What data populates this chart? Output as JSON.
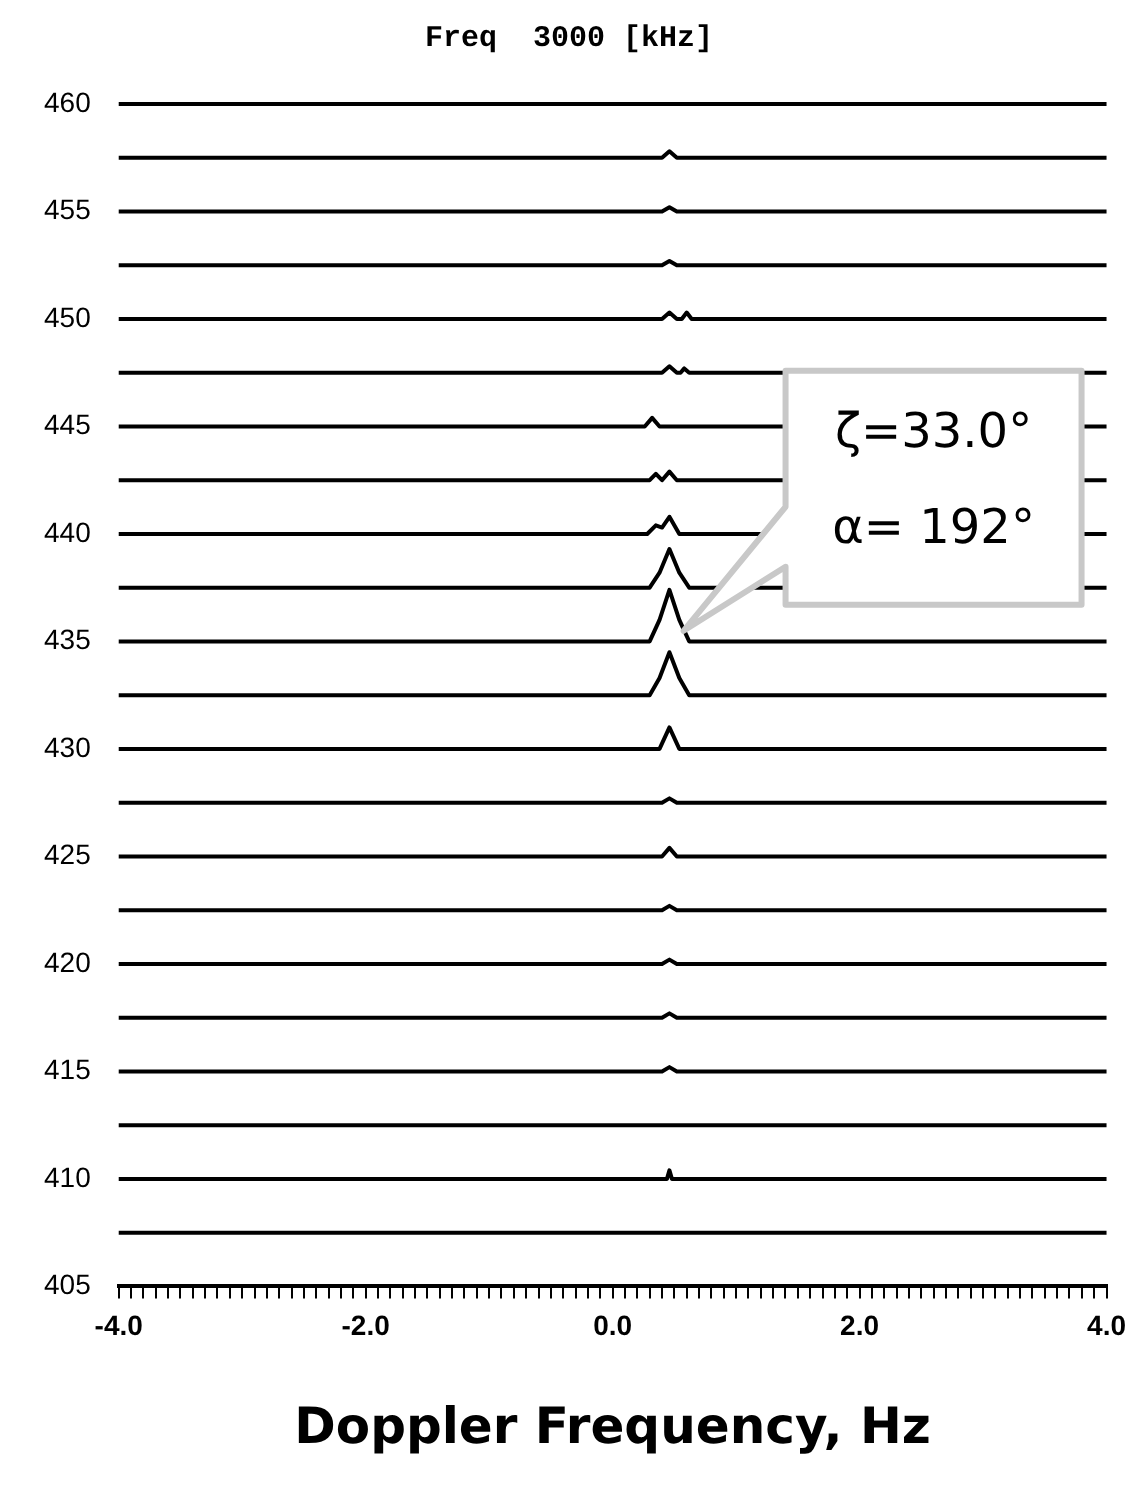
{
  "chart_data": {
    "type": "line",
    "title": "Freq  3000 [kHz]",
    "xlabel": "Doppler Frequency, Hz",
    "marker": "none",
    "legend": false,
    "grid": false,
    "xlim": [
      -4,
      4
    ],
    "ylim": [
      405,
      460
    ],
    "yticks": [
      405,
      410,
      415,
      420,
      425,
      430,
      435,
      440,
      445,
      450,
      455,
      460
    ],
    "xticks": [
      {
        "value": -4,
        "label": "-4.0"
      },
      {
        "value": -3.9,
        "label": null
      },
      {
        "value": -3.8,
        "label": null
      },
      {
        "value": -3.7,
        "label": null
      },
      {
        "value": -3.6,
        "label": null
      },
      {
        "value": -3.5,
        "label": null
      },
      {
        "value": -3.4,
        "label": null
      },
      {
        "value": -3.3,
        "label": null
      },
      {
        "value": -3.2,
        "label": null
      },
      {
        "value": -3.1,
        "label": null
      },
      {
        "value": -3,
        "label": null
      },
      {
        "value": -2.9,
        "label": null
      },
      {
        "value": -2.8,
        "label": null
      },
      {
        "value": -2.7,
        "label": null
      },
      {
        "value": -2.6,
        "label": null
      },
      {
        "value": -2.5,
        "label": null
      },
      {
        "value": -2.4,
        "label": null
      },
      {
        "value": -2.3,
        "label": null
      },
      {
        "value": -2.2,
        "label": null
      },
      {
        "value": -2.1,
        "label": null
      },
      {
        "value": -2,
        "label": "-2.0"
      },
      {
        "value": -1.9,
        "label": null
      },
      {
        "value": -1.8,
        "label": null
      },
      {
        "value": -1.7,
        "label": null
      },
      {
        "value": -1.6,
        "label": null
      },
      {
        "value": -1.5,
        "label": null
      },
      {
        "value": -1.4,
        "label": null
      },
      {
        "value": -1.3,
        "label": null
      },
      {
        "value": -1.2,
        "label": null
      },
      {
        "value": -1.1,
        "label": null
      },
      {
        "value": -1,
        "label": null
      },
      {
        "value": -0.9,
        "label": null
      },
      {
        "value": -0.8,
        "label": null
      },
      {
        "value": -0.7,
        "label": null
      },
      {
        "value": -0.6,
        "label": null
      },
      {
        "value": -0.5,
        "label": null
      },
      {
        "value": -0.4,
        "label": null
      },
      {
        "value": -0.3,
        "label": null
      },
      {
        "value": -0.2,
        "label": null
      },
      {
        "value": -0.1,
        "label": null
      },
      {
        "value": 0,
        "label": "0.0"
      },
      {
        "value": 0.1,
        "label": null
      },
      {
        "value": 0.2,
        "label": null
      },
      {
        "value": 0.3,
        "label": null
      },
      {
        "value": 0.4,
        "label": null
      },
      {
        "value": 0.5,
        "label": null
      },
      {
        "value": 0.6,
        "label": null
      },
      {
        "value": 0.7,
        "label": null
      },
      {
        "value": 0.8,
        "label": null
      },
      {
        "value": 0.9,
        "label": null
      },
      {
        "value": 1,
        "label": null
      },
      {
        "value": 1.1,
        "label": null
      },
      {
        "value": 1.2,
        "label": null
      },
      {
        "value": 1.3,
        "label": null
      },
      {
        "value": 1.4,
        "label": null
      },
      {
        "value": 1.5,
        "label": null
      },
      {
        "value": 1.6,
        "label": null
      },
      {
        "value": 1.7,
        "label": null
      },
      {
        "value": 1.8,
        "label": null
      },
      {
        "value": 1.9,
        "label": null
      },
      {
        "value": 2,
        "label": "2.0"
      },
      {
        "value": 2.1,
        "label": null
      },
      {
        "value": 2.2,
        "label": null
      },
      {
        "value": 2.3,
        "label": null
      },
      {
        "value": 2.4,
        "label": null
      },
      {
        "value": 2.5,
        "label": null
      },
      {
        "value": 2.6,
        "label": null
      },
      {
        "value": 2.7,
        "label": null
      },
      {
        "value": 2.8,
        "label": null
      },
      {
        "value": 2.9,
        "label": null
      },
      {
        "value": 3,
        "label": null
      },
      {
        "value": 3.1,
        "label": null
      },
      {
        "value": 3.2,
        "label": null
      },
      {
        "value": 3.3,
        "label": null
      },
      {
        "value": 3.4,
        "label": null
      },
      {
        "value": 3.5,
        "label": null
      },
      {
        "value": 3.6,
        "label": null
      },
      {
        "value": 3.7,
        "label": null
      },
      {
        "value": 3.8,
        "label": null
      },
      {
        "value": 3.9,
        "label": null
      },
      {
        "value": 4,
        "label": "4.0"
      }
    ],
    "annotations": [
      "ζ=33.0°\nα= 192°"
    ],
    "series": [
      {
        "color": "#000000",
        "x": [
          -4,
          4
        ],
        "values": [
          460,
          460
        ]
      },
      {
        "color": "#000000",
        "x": [
          -4,
          0.4,
          0.46,
          0.52,
          4
        ],
        "values": [
          457.5,
          457.5,
          457.8,
          457.5,
          457.5
        ]
      },
      {
        "color": "#000000",
        "x": [
          -4,
          0.4,
          0.46,
          0.52,
          4
        ],
        "values": [
          455,
          455,
          455.2,
          455,
          455
        ]
      },
      {
        "color": "#000000",
        "x": [
          -4,
          0.4,
          0.46,
          0.52,
          4
        ],
        "values": [
          452.5,
          452.5,
          452.7,
          452.5,
          452.5
        ]
      },
      {
        "color": "#000000",
        "x": [
          -4,
          0.4,
          0.46,
          0.52,
          0.56,
          0.6,
          0.64,
          4
        ],
        "values": [
          450,
          450,
          450.3,
          450,
          450,
          450.3,
          450,
          450
        ]
      },
      {
        "color": "#000000",
        "x": [
          -4,
          0.4,
          0.46,
          0.52,
          0.55,
          0.58,
          0.62,
          4
        ],
        "values": [
          447.5,
          447.5,
          447.8,
          447.5,
          447.5,
          447.7,
          447.5,
          447.5
        ]
      },
      {
        "color": "#000000",
        "x": [
          -4,
          0.26,
          0.32,
          0.38,
          4
        ],
        "values": [
          445,
          445,
          445.4,
          445,
          445
        ]
      },
      {
        "color": "#000000",
        "x": [
          -4,
          0.3,
          0.35,
          0.4,
          0.46,
          0.52,
          4
        ],
        "values": [
          442.5,
          442.5,
          442.8,
          442.5,
          442.9,
          442.5,
          442.5
        ]
      },
      {
        "color": "#000000",
        "x": [
          -4,
          0.28,
          0.35,
          0.4,
          0.46,
          0.54,
          4
        ],
        "values": [
          440,
          440,
          440.4,
          440.3,
          440.8,
          440,
          440
        ]
      },
      {
        "color": "#000000",
        "x": [
          -4,
          0.3,
          0.38,
          0.46,
          0.54,
          0.62,
          4
        ],
        "values": [
          437.5,
          437.5,
          438.2,
          439.3,
          438.2,
          437.5,
          437.5
        ]
      },
      {
        "color": "#000000",
        "x": [
          -4,
          0.3,
          0.38,
          0.46,
          0.54,
          0.62,
          4
        ],
        "values": [
          435,
          435,
          436,
          437.4,
          436,
          435,
          435
        ]
      },
      {
        "color": "#000000",
        "x": [
          -4,
          0.3,
          0.38,
          0.46,
          0.54,
          0.62,
          4
        ],
        "values": [
          432.5,
          432.5,
          433.3,
          434.5,
          433.3,
          432.5,
          432.5
        ]
      },
      {
        "color": "#000000",
        "x": [
          -4,
          0.38,
          0.46,
          0.54,
          4
        ],
        "values": [
          430,
          430,
          431,
          430,
          430
        ]
      },
      {
        "color": "#000000",
        "x": [
          -4,
          0.4,
          0.46,
          0.52,
          4
        ],
        "values": [
          427.5,
          427.5,
          427.7,
          427.5,
          427.5
        ]
      },
      {
        "color": "#000000",
        "x": [
          -4,
          0.4,
          0.46,
          0.52,
          4
        ],
        "values": [
          425,
          425,
          425.4,
          425,
          425
        ]
      },
      {
        "color": "#000000",
        "x": [
          -4,
          0.4,
          0.46,
          0.52,
          4
        ],
        "values": [
          422.5,
          422.5,
          422.7,
          422.5,
          422.5
        ]
      },
      {
        "color": "#000000",
        "x": [
          -4,
          0.4,
          0.46,
          0.52,
          4
        ],
        "values": [
          420,
          420,
          420.2,
          420,
          420
        ]
      },
      {
        "color": "#000000",
        "x": [
          -4,
          0.4,
          0.46,
          0.52,
          4
        ],
        "values": [
          417.5,
          417.5,
          417.7,
          417.5,
          417.5
        ]
      },
      {
        "color": "#000000",
        "x": [
          -4,
          0.4,
          0.46,
          0.52,
          4
        ],
        "values": [
          415,
          415,
          415.2,
          415,
          415
        ]
      },
      {
        "color": "#000000",
        "x": [
          -4,
          4
        ],
        "values": [
          412.5,
          412.5
        ]
      },
      {
        "color": "#000000",
        "x": [
          -4,
          0.44,
          0.46,
          0.48,
          4
        ],
        "values": [
          410,
          410,
          410.4,
          410,
          410
        ]
      },
      {
        "color": "#000000",
        "x": [
          -4,
          4
        ],
        "values": [
          407.5,
          407.5
        ]
      }
    ]
  }
}
